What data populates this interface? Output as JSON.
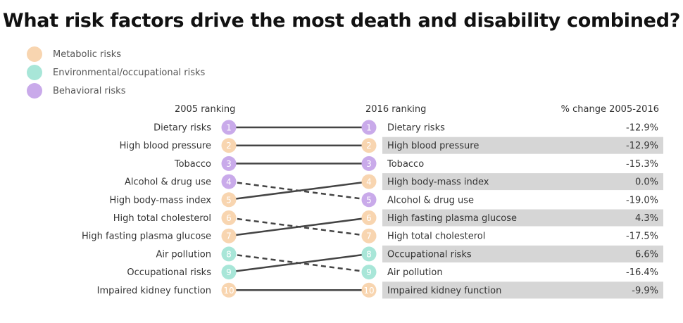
{
  "chart_data": {
    "type": "slope",
    "title": "What risk factors drive the most death and disability combined?",
    "legend": [
      {
        "name": "Metabolic risks",
        "color": "#f8d5b0"
      },
      {
        "name": "Environmental/occupational risks",
        "color": "#a8e6d8"
      },
      {
        "name": "Behavioral risks",
        "color": "#c9aaea"
      }
    ],
    "left_header": "2005 ranking",
    "right_header": "2016 ranking",
    "change_header": "% change 2005-2016",
    "items": [
      {
        "name": "Dietary risks",
        "category": 2,
        "rank_2005": 1,
        "rank_2016": 1,
        "change": "-12.9%"
      },
      {
        "name": "High blood pressure",
        "category": 0,
        "rank_2005": 2,
        "rank_2016": 2,
        "change": "-12.9%"
      },
      {
        "name": "Tobacco",
        "category": 2,
        "rank_2005": 3,
        "rank_2016": 3,
        "change": "-15.3%"
      },
      {
        "name": "Alcohol & drug use",
        "category": 2,
        "rank_2005": 4,
        "rank_2016": 5,
        "change": "-19.0%"
      },
      {
        "name": "High body-mass index",
        "category": 0,
        "rank_2005": 5,
        "rank_2016": 4,
        "change": "0.0%"
      },
      {
        "name": "High total cholesterol",
        "category": 0,
        "rank_2005": 6,
        "rank_2016": 7,
        "change": "-17.5%"
      },
      {
        "name": "High fasting plasma glucose",
        "category": 0,
        "rank_2005": 7,
        "rank_2016": 6,
        "change": "4.3%"
      },
      {
        "name": "Air pollution",
        "category": 1,
        "rank_2005": 8,
        "rank_2016": 9,
        "change": "-16.4%"
      },
      {
        "name": "Occupational risks",
        "category": 1,
        "rank_2005": 9,
        "rank_2016": 8,
        "change": "6.6%"
      },
      {
        "name": "Impaired kidney function",
        "category": 0,
        "rank_2005": 10,
        "rank_2016": 10,
        "change": "-9.9%"
      }
    ]
  }
}
